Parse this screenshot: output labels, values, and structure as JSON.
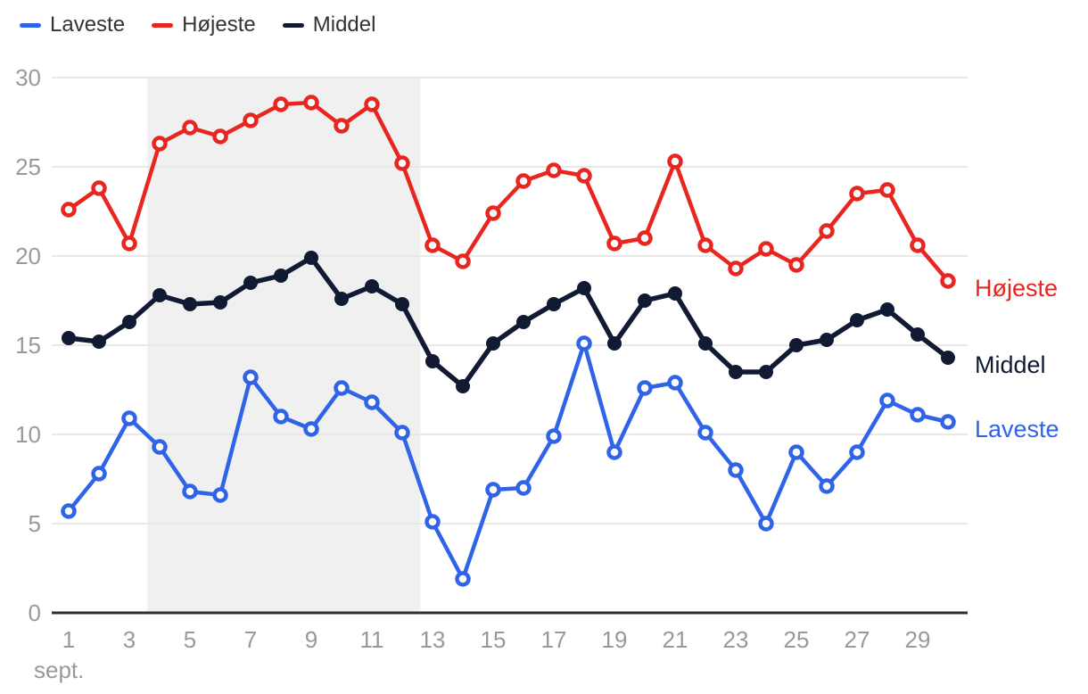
{
  "chart_data": {
    "type": "line",
    "title": "",
    "xlabel": "sept.",
    "ylabel": "",
    "x": [
      1,
      2,
      3,
      4,
      5,
      6,
      7,
      8,
      9,
      10,
      11,
      12,
      13,
      14,
      15,
      16,
      17,
      18,
      19,
      20,
      21,
      22,
      23,
      24,
      25,
      26,
      27,
      28,
      29,
      30
    ],
    "xticks": [
      1,
      3,
      5,
      7,
      9,
      11,
      13,
      15,
      17,
      19,
      21,
      23,
      25,
      27,
      29
    ],
    "yticks": [
      0,
      5,
      10,
      15,
      20,
      25,
      30
    ],
    "ylim": [
      0,
      30
    ],
    "grid": true,
    "legend_position": "top-left",
    "highlight_band": {
      "from_day": 3.6,
      "to_day": 12.6,
      "color": "#f0f0f0"
    },
    "colors": {
      "grid": "#e8e8e8",
      "axis": "#2e2e2e",
      "tick_text": "#999999",
      "legend_text": "#333333"
    },
    "series": [
      {
        "name": "Laveste",
        "color": "#2f63e8",
        "marker": "open-circle",
        "line_width": 4.5,
        "values": [
          5.7,
          7.8,
          10.9,
          9.3,
          6.8,
          6.6,
          13.2,
          11.0,
          10.3,
          12.6,
          11.8,
          10.1,
          5.1,
          1.9,
          6.9,
          7.0,
          9.9,
          15.1,
          9.0,
          12.6,
          12.9,
          10.1,
          8.0,
          5.0,
          9.0,
          7.1,
          9.0,
          11.9,
          11.1,
          10.7
        ]
      },
      {
        "name": "Højeste",
        "color": "#e8251f",
        "marker": "open-circle",
        "line_width": 4.5,
        "values": [
          22.6,
          23.8,
          20.7,
          26.3,
          27.2,
          26.7,
          27.6,
          28.5,
          28.6,
          27.3,
          28.5,
          25.2,
          20.6,
          19.7,
          22.4,
          24.2,
          24.8,
          24.5,
          20.7,
          21.0,
          25.3,
          20.6,
          19.3,
          20.4,
          19.5,
          21.4,
          23.5,
          23.7,
          20.6,
          18.6
        ]
      },
      {
        "name": "Middel",
        "color": "#111a33",
        "marker": "filled-circle",
        "line_width": 5.5,
        "values": [
          15.4,
          15.2,
          16.3,
          17.8,
          17.3,
          17.4,
          18.5,
          18.9,
          19.9,
          17.6,
          18.3,
          17.3,
          14.1,
          12.7,
          15.1,
          16.3,
          17.3,
          18.2,
          15.1,
          17.5,
          17.9,
          15.1,
          13.5,
          13.5,
          15.0,
          15.3,
          16.4,
          17.0,
          15.6,
          14.3
        ]
      }
    ]
  }
}
